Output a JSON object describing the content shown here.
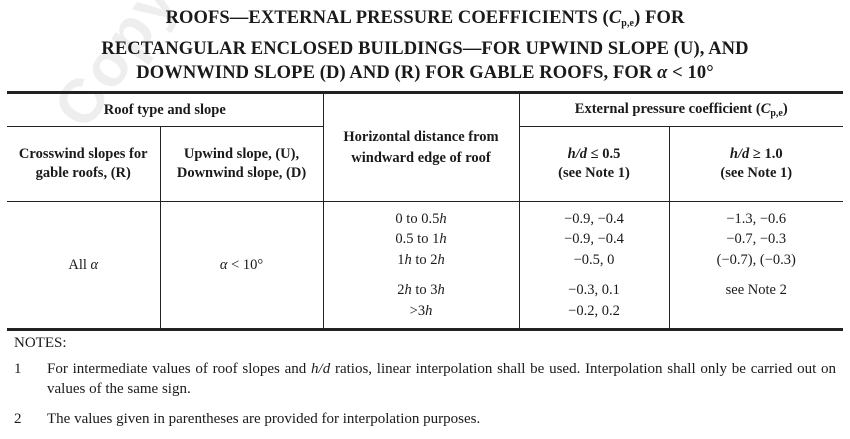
{
  "title": {
    "line1_prefix": "ROOFS—EXTERNAL PRESSURE COEFFICIENTS (",
    "line1_symbol": "C",
    "line1_subscript": "p,e",
    "line1_suffix": ") FOR",
    "line2": "RECTANGULAR ENCLOSED BUILDINGS—FOR UPWIND SLOPE (U), AND",
    "line3_prefix": "DOWNWIND SLOPE (D) AND (R) FOR GABLE ROOFS, FOR ",
    "line3_symbol": "α",
    "line3_suffix": " < 10°"
  },
  "watermark": "Copyright",
  "table": {
    "header": {
      "roof_type_and_slope": "Roof type and slope",
      "horizontal_distance": "Horizontal distance from windward edge of roof",
      "epc_prefix": "External pressure coefficient (",
      "epc_symbol": "C",
      "epc_subscript": "p,e",
      "epc_suffix": ")",
      "crosswind": "Crosswind slopes for gable roofs, (R)",
      "upwind": "Upwind slope, (U), Downwind slope, (D)",
      "hd_low_ratio": "h/d",
      "hd_low_op": " ≤ 0.5",
      "hd_low_note": "(see Note 1)",
      "hd_high_ratio": "h/d",
      "hd_high_op": " ≥ 1.0",
      "hd_high_note": "(see Note 1)"
    },
    "body": {
      "crosswind_prefix": "All ",
      "crosswind_symbol": "α",
      "upwind_symbol": "α",
      "upwind_suffix": " < 10°",
      "distances": [
        {
          "a": "0 to 0.5",
          "h": "h"
        },
        {
          "a": "0.5 to 1",
          "h": "h"
        },
        {
          "a": "1",
          "h": "h",
          "b": " to 2",
          "h2": "h"
        },
        {
          "a": "2",
          "h": "h",
          "b": " to 3",
          "h2": "h"
        },
        {
          "a": ">3",
          "h": "h"
        }
      ],
      "low_values": [
        "−0.9, −0.4",
        "−0.9, −0.4",
        "−0.5, 0",
        "−0.3, 0.1",
        "−0.2, 0.2"
      ],
      "high_values": [
        "−1.3, −0.6",
        "−0.7, −0.3",
        "(−0.7), (−0.3)",
        "see Note 2"
      ]
    }
  },
  "notes": {
    "heading": "NOTES:",
    "items": [
      {
        "num": "1",
        "pre": "For intermediate values of roof slopes and ",
        "ital": "h/d",
        "post": " ratios, linear interpolation shall be used. Interpolation shall only be carried out on values of the same sign."
      },
      {
        "num": "2",
        "pre": "The values given in parentheses are provided for interpolation purposes.",
        "ital": "",
        "post": ""
      }
    ]
  }
}
